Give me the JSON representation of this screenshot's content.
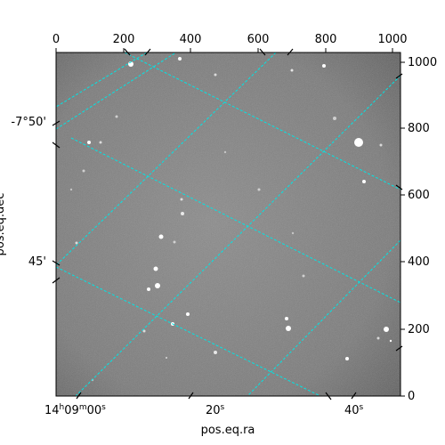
{
  "figure": {
    "xlabel": "pos.eq.ra",
    "ylabel": "pos.eq.dec",
    "background_color": "#ffffff",
    "image_bg_color": "#7d7d7d",
    "grid_color": "#00e5e5"
  },
  "pixel_axes": {
    "top_ticks": [
      "0",
      "200",
      "400",
      "600",
      "800",
      "1000"
    ],
    "right_ticks": [
      "0",
      "200",
      "400",
      "600",
      "800",
      "1000"
    ]
  },
  "world_axes": {
    "ra_ticks": {
      "t0": {
        "h": "14",
        "hu": "h",
        "m": "09",
        "mu": "m",
        "s": "00",
        "su": "s"
      },
      "t1": {
        "s": "20",
        "su": "s"
      },
      "t2": {
        "s": "40",
        "su": "s"
      }
    },
    "dec_ticks": [
      "-7°50'",
      "45'"
    ]
  }
}
